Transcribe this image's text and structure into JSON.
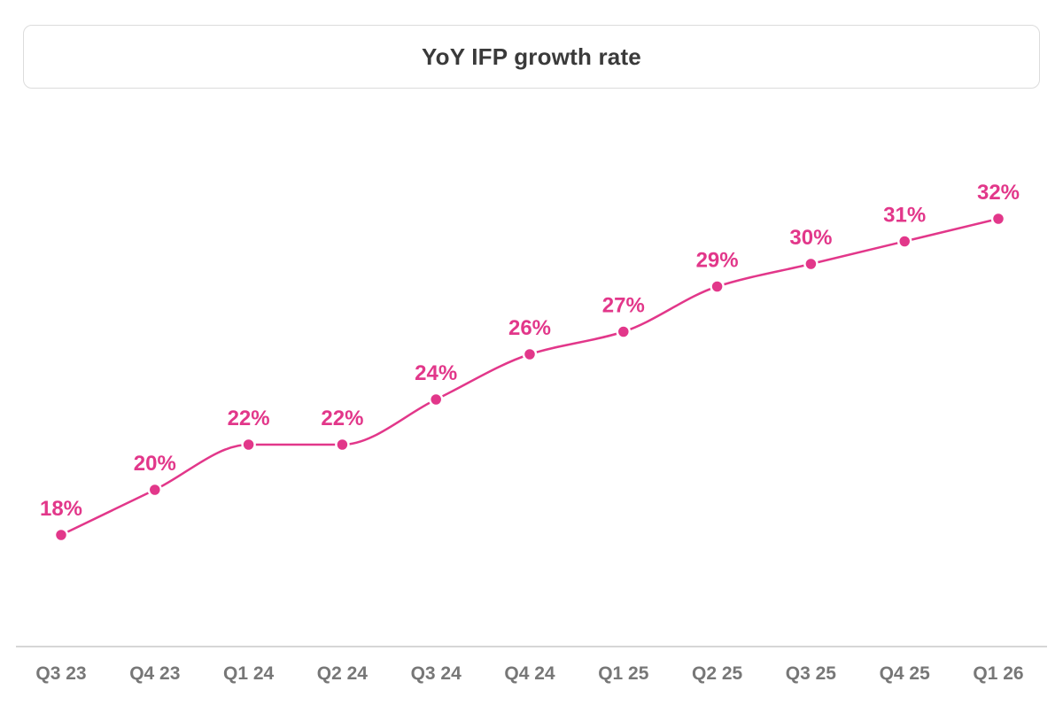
{
  "chart_data": {
    "type": "line",
    "title": "YoY IFP growth rate",
    "categories": [
      "Q3 23",
      "Q4 23",
      "Q1 24",
      "Q2 24",
      "Q3 24",
      "Q4 24",
      "Q1 25",
      "Q2 25",
      "Q3 25",
      "Q4 25",
      "Q1 26"
    ],
    "series": [
      {
        "values": [
          18,
          20,
          22,
          22,
          24,
          26,
          27,
          29,
          30,
          31,
          32
        ],
        "data_labels": [
          "18%",
          "20%",
          "22%",
          "22%",
          "24%",
          "26%",
          "27%",
          "29%",
          "30%",
          "31%",
          "32%"
        ],
        "color": "#e2378a"
      }
    ],
    "xlabel": "",
    "ylabel": "",
    "grid": false,
    "y_axis_visible": false,
    "line_smoothing": "curved"
  }
}
